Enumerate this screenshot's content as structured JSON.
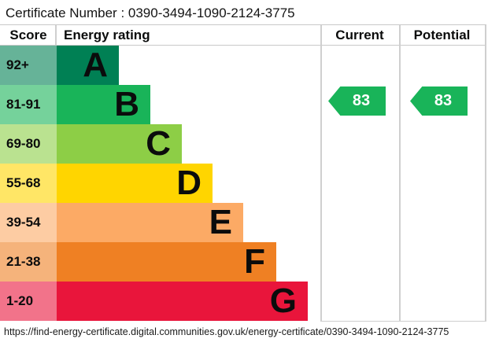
{
  "page": {
    "certificate": {
      "label": "Certificate Number",
      "separator": " : ",
      "number": "0390-3494-1090-2124-3775"
    },
    "table_headers": {
      "score": "Score",
      "rating": "Energy rating",
      "current": "Current",
      "potential": "Potential"
    },
    "footer_url": "https://find-energy-certificate.digital.communities.gov.uk/energy-certificate/0390-3494-1090-2124-3775"
  },
  "chart_data": {
    "type": "bar",
    "chart_kind": "epc-energy-rating-graph",
    "title": "Energy rating",
    "legend_position": "none",
    "grid": false,
    "bands": [
      {
        "letter": "A",
        "score_range": "92+",
        "color": "#008054",
        "tint": "#66b398"
      },
      {
        "letter": "B",
        "score_range": "81-91",
        "color": "#19b459",
        "tint": "#75d29b"
      },
      {
        "letter": "C",
        "score_range": "69-80",
        "color": "#8dce46",
        "tint": "#bae290"
      },
      {
        "letter": "D",
        "score_range": "55-68",
        "color": "#ffd500",
        "tint": "#ffe666"
      },
      {
        "letter": "E",
        "score_range": "39-54",
        "color": "#fcaa65",
        "tint": "#fdcca3"
      },
      {
        "letter": "F",
        "score_range": "21-38",
        "color": "#ef8023",
        "tint": "#f5b37b"
      },
      {
        "letter": "G",
        "score_range": "1-20",
        "color": "#e9153b",
        "tint": "#f2738a"
      }
    ],
    "ratings": {
      "current": {
        "value": 83,
        "band": "B",
        "color": "#19b459"
      },
      "potential": {
        "value": 83,
        "band": "B",
        "color": "#19b459"
      }
    }
  }
}
